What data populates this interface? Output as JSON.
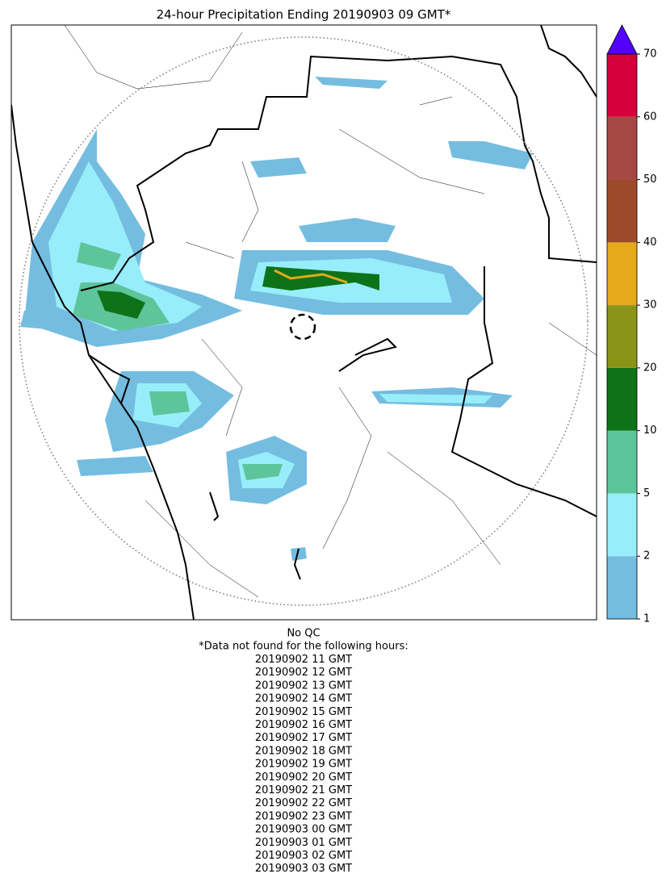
{
  "header": {
    "title": "24-hour Precipitation Ending 20190903 09 GMT*"
  },
  "colorbar": {
    "ticks": [
      1,
      2,
      5,
      10,
      20,
      30,
      40,
      50,
      60,
      70
    ],
    "colors": [
      "#74bde0",
      "#97eefa",
      "#5ec49a",
      "#0e7219",
      "#8a9418",
      "#e6a91c",
      "#9c4a2a",
      "#a54742",
      "#d6003d"
    ],
    "extend_color": "#5200ff"
  },
  "footer": {
    "qc": "No QC",
    "note": "*Data not found for the following hours:",
    "hours": [
      "20190902 11 GMT",
      "20190902 12 GMT",
      "20190902 13 GMT",
      "20190902 14 GMT",
      "20190902 15 GMT",
      "20190902 16 GMT",
      "20190902 17 GMT",
      "20190902 18 GMT",
      "20190902 19 GMT",
      "20190902 20 GMT",
      "20190902 21 GMT",
      "20190902 22 GMT",
      "20190902 23 GMT",
      "20190903 00 GMT",
      "20190903 01 GMT",
      "20190903 02 GMT",
      "20190903 03 GMT"
    ]
  }
}
